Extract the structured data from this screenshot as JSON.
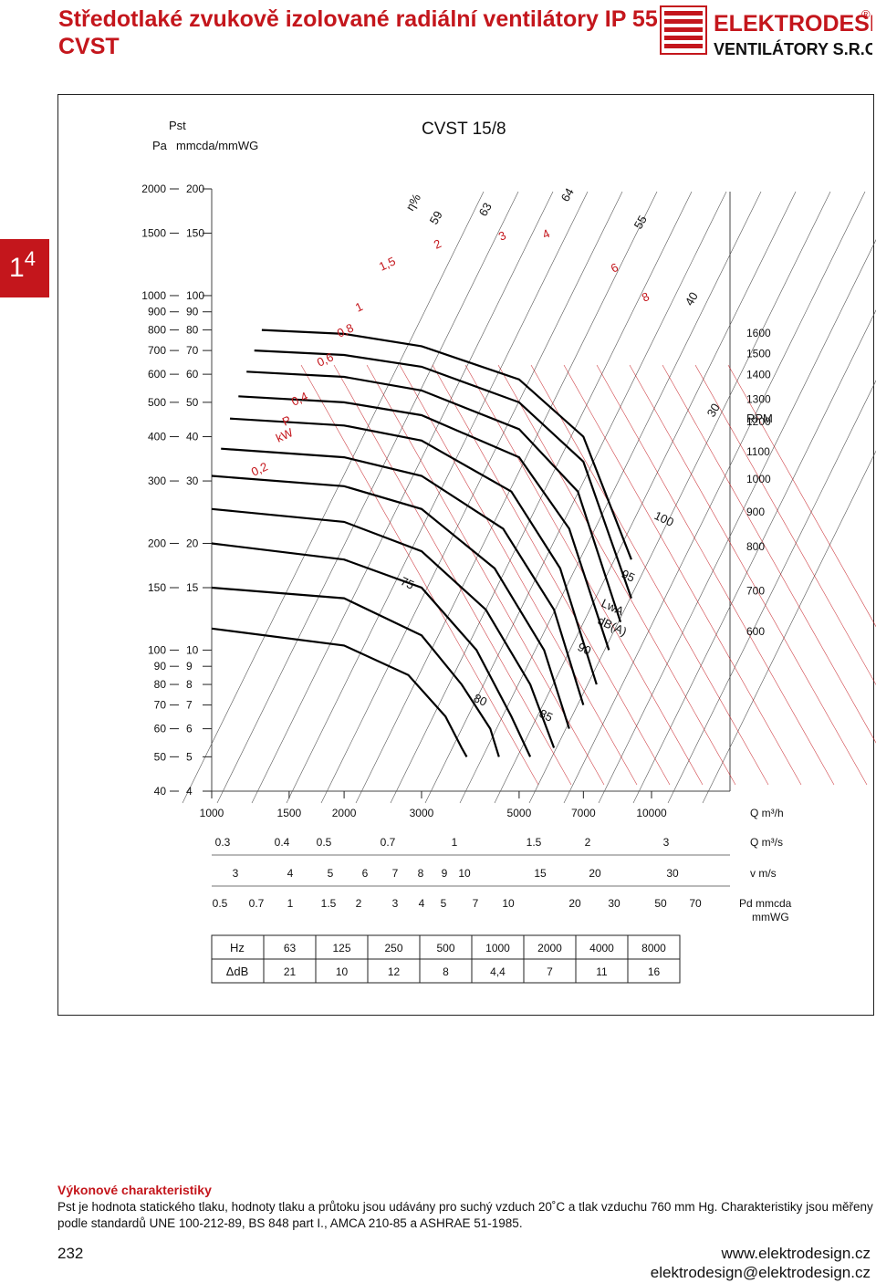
{
  "header": {
    "title_line1": "Středotlaké zvukově izolované radiální ventilátory IP 55",
    "title_line2": "CVST",
    "logo_text": "ELEKTRODESIGN",
    "logo_sub": "VENTILÁTORY S.R.O.",
    "logo_registered": "®"
  },
  "section_tab": {
    "main": "1",
    "sup": "4"
  },
  "colors": {
    "accent": "#c4161c",
    "curve": "#000000",
    "grid": "#444444"
  },
  "chart_data": {
    "type": "line",
    "title": "CVST 15/8",
    "y_axis_label": {
      "line1": "Pst",
      "pa": "Pa",
      "mm": "mmcda/mmWG"
    },
    "y_scale": "log",
    "x_scale": "log",
    "y_ticks": [
      {
        "pa": "2000",
        "mm": "200",
        "v": 200
      },
      {
        "pa": "1500",
        "mm": "150",
        "v": 150
      },
      {
        "pa": "1000",
        "mm": "100",
        "v": 100
      },
      {
        "pa": "900",
        "mm": "90",
        "v": 90
      },
      {
        "pa": "800",
        "mm": "80",
        "v": 80
      },
      {
        "pa": "700",
        "mm": "70",
        "v": 70
      },
      {
        "pa": "600",
        "mm": "60",
        "v": 60
      },
      {
        "pa": "500",
        "mm": "50",
        "v": 50
      },
      {
        "pa": "400",
        "mm": "40",
        "v": 40
      },
      {
        "pa": "300",
        "mm": "30",
        "v": 30
      },
      {
        "pa": "200",
        "mm": "20",
        "v": 20
      },
      {
        "pa": "150",
        "mm": "15",
        "v": 15
      },
      {
        "pa": "100",
        "mm": "10",
        "v": 10
      },
      {
        "pa": "90",
        "mm": "9",
        "v": 9
      },
      {
        "pa": "80",
        "mm": "8",
        "v": 8
      },
      {
        "pa": "70",
        "mm": "7",
        "v": 7
      },
      {
        "pa": "60",
        "mm": "6",
        "v": 6
      },
      {
        "pa": "50",
        "mm": "5",
        "v": 5
      },
      {
        "pa": "40",
        "mm": "4",
        "v": 4
      }
    ],
    "x_ticks_m3h": [
      1000,
      1500,
      2000,
      3000,
      5000,
      7000,
      10000
    ],
    "x_label_m3h": "Q m³/h",
    "x_ticks_m3s": [
      "0.3",
      "0.4",
      "0.5",
      "0.7",
      "1",
      "1.5",
      "2",
      "3"
    ],
    "x_label_m3s": "Q m³/s",
    "x_ticks_vms": [
      "3",
      "4",
      "5",
      "6",
      "7",
      "8",
      "9",
      "10",
      "15",
      "20",
      "30"
    ],
    "x_label_vms": "v m/s",
    "x_ticks_pd": [
      "0.5",
      "0.7",
      "1",
      "1.5",
      "2",
      "3",
      "4",
      "5",
      "7",
      "10",
      "20",
      "30",
      "50",
      "70"
    ],
    "x_label_pd": "Pd mmcda",
    "x_label_pd2": "mmWG",
    "rpm_label": "RPM",
    "series": [
      {
        "name": "1600",
        "points": [
          [
            1300,
            80
          ],
          [
            2000,
            78
          ],
          [
            3000,
            72
          ],
          [
            5000,
            58
          ],
          [
            7000,
            40
          ],
          [
            9000,
            18
          ]
        ]
      },
      {
        "name": "1500",
        "points": [
          [
            1250,
            70
          ],
          [
            2000,
            68
          ],
          [
            3000,
            63
          ],
          [
            5000,
            50
          ],
          [
            7000,
            34
          ],
          [
            9000,
            14
          ]
        ]
      },
      {
        "name": "1400",
        "points": [
          [
            1200,
            61
          ],
          [
            2000,
            59
          ],
          [
            3000,
            54
          ],
          [
            5000,
            42
          ],
          [
            6800,
            28
          ],
          [
            8500,
            12
          ]
        ]
      },
      {
        "name": "1300",
        "points": [
          [
            1150,
            52
          ],
          [
            2000,
            50
          ],
          [
            3000,
            46
          ],
          [
            5000,
            35
          ],
          [
            6500,
            22
          ],
          [
            8000,
            10
          ]
        ]
      },
      {
        "name": "1200",
        "points": [
          [
            1100,
            45
          ],
          [
            2000,
            43
          ],
          [
            3000,
            39
          ],
          [
            4800,
            28
          ],
          [
            6200,
            17
          ],
          [
            7500,
            8
          ]
        ]
      },
      {
        "name": "1100",
        "points": [
          [
            1050,
            37
          ],
          [
            2000,
            35
          ],
          [
            3000,
            31
          ],
          [
            4600,
            22
          ],
          [
            6000,
            13
          ],
          [
            7000,
            7
          ]
        ]
      },
      {
        "name": "1000",
        "points": [
          [
            1000,
            31
          ],
          [
            2000,
            29
          ],
          [
            3000,
            25
          ],
          [
            4400,
            17
          ],
          [
            5700,
            10
          ],
          [
            6500,
            6
          ]
        ]
      },
      {
        "name": "900",
        "points": [
          [
            1000,
            25
          ],
          [
            2000,
            23
          ],
          [
            3000,
            19
          ],
          [
            4200,
            13
          ],
          [
            5300,
            8
          ],
          [
            6000,
            5.3
          ]
        ]
      },
      {
        "name": "800",
        "points": [
          [
            1000,
            20
          ],
          [
            2000,
            18
          ],
          [
            3000,
            15
          ],
          [
            4000,
            10
          ],
          [
            4800,
            6.5
          ],
          [
            5300,
            5
          ]
        ]
      },
      {
        "name": "700",
        "points": [
          [
            1000,
            15
          ],
          [
            2000,
            14
          ],
          [
            3000,
            11
          ],
          [
            3700,
            8
          ],
          [
            4300,
            6
          ],
          [
            4500,
            5
          ]
        ]
      },
      {
        "name": "600",
        "points": [
          [
            1000,
            11.5
          ],
          [
            2000,
            10.3
          ],
          [
            2800,
            8.5
          ],
          [
            3400,
            6.5
          ],
          [
            3700,
            5.3
          ],
          [
            3800,
            5
          ]
        ]
      }
    ],
    "power_labels": [
      "0,2",
      "0,4",
      "P",
      "kW",
      "0,6",
      "0,8",
      "1",
      "1,5",
      "2",
      "3",
      "4",
      "6",
      "8"
    ],
    "efficiency_labels": [
      "η%",
      "59",
      "63",
      "64",
      "55",
      "40",
      "30"
    ],
    "noise_labels": [
      "75",
      "80",
      "85",
      "90",
      "95",
      "100",
      "LwA",
      "dB(A)"
    ],
    "octave_table": {
      "hz_label": "Hz",
      "db_label": "ΔdB",
      "hz": [
        "63",
        "125",
        "250",
        "500",
        "1000",
        "2000",
        "4000",
        "8000"
      ],
      "db": [
        "21",
        "10",
        "12",
        "8",
        "4,4",
        "7",
        "11",
        "16"
      ]
    }
  },
  "footer": {
    "title": "Výkonové charakteristiky",
    "note": "Pst je hodnota statického tlaku, hodnoty tlaku a průtoku jsou udávány pro suchý vzduch 20˚C a tlak vzduchu 760 mm Hg. Charakteristiky jsou měřeny podle standardů UNE 100-212-89, BS 848 part I., AMCA 210-85 a ASHRAE 51-1985.",
    "page_number": "232",
    "web": "www.elektrodesign.cz",
    "email": "elektrodesign@elektrodesign.cz"
  }
}
